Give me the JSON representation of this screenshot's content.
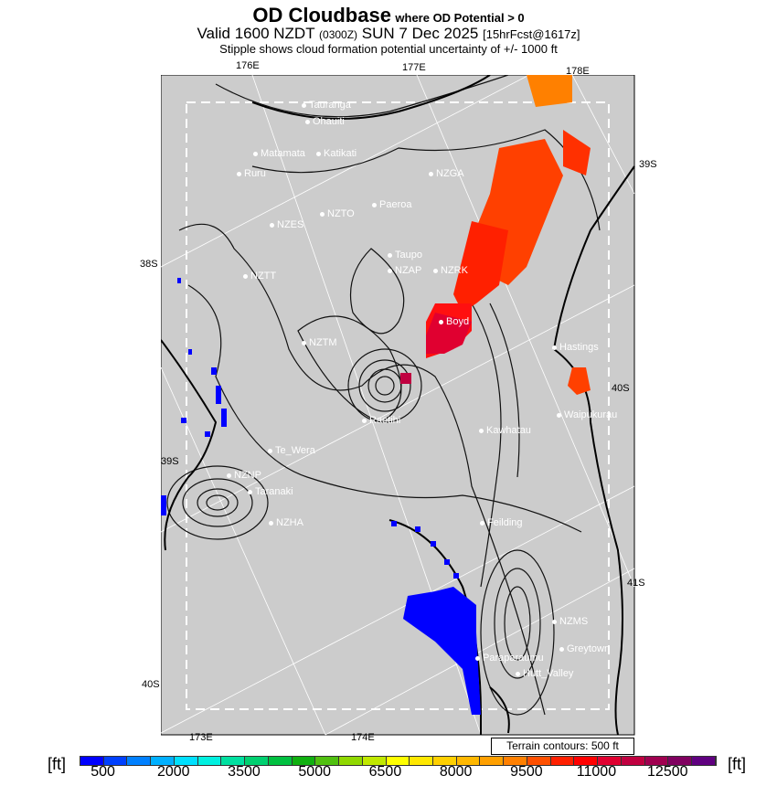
{
  "title": {
    "main": "OD Cloudbase",
    "qualifier": "where OD Potential > 0"
  },
  "valid": {
    "prefix": "Valid 1600 NZDT",
    "utc": "(0300Z)",
    "date": "SUN 7 Dec 2025",
    "forecast": "[15hrFcst@1617z]"
  },
  "stipple_note": "Stipple shows cloud formation potential uncertainty of +/- 1000 ft",
  "grid_labels": {
    "lon": [
      "176E",
      "177E",
      "178E",
      "173E",
      "174E"
    ],
    "lat": [
      "39S",
      "38S",
      "40S",
      "39S",
      "41S",
      "40S"
    ]
  },
  "places": [
    "Tauranga",
    "Ohauiti",
    "Matamata",
    "Katikati",
    "Ruru",
    "NZGA",
    "Paeroa",
    "NZTO",
    "NZES",
    "Taupo",
    "NZAP",
    "NZRK",
    "NZTT",
    "Boyd",
    "NZTM",
    "Hastings",
    "Raetihi",
    "Kawhatau",
    "Waipukurau",
    "Te_Wera",
    "NZNP",
    "Taranaki",
    "NZHA",
    "Feilding",
    "NZMS",
    "Greytown",
    "Paraparaumu",
    "Hutt_Valley"
  ],
  "terrain_note": "Terrain contours: 500 ft",
  "colorbar": {
    "unit": "[ft]",
    "labels": [
      "500",
      "2000",
      "3500",
      "5000",
      "6500",
      "8000",
      "9500",
      "11000",
      "12500"
    ],
    "colors": [
      "#0000ff",
      "#0040ff",
      "#0080ff",
      "#00b0ff",
      "#00e0ff",
      "#00f0e0",
      "#00e0a0",
      "#00d070",
      "#00c040",
      "#10b010",
      "#50c010",
      "#90d800",
      "#c0e800",
      "#ffff00",
      "#ffe800",
      "#ffd000",
      "#ffb800",
      "#ffa000",
      "#ff8000",
      "#ff5000",
      "#ff2000",
      "#ff0000",
      "#e00030",
      "#c00040",
      "#a00050",
      "#800060",
      "#600080"
    ]
  }
}
